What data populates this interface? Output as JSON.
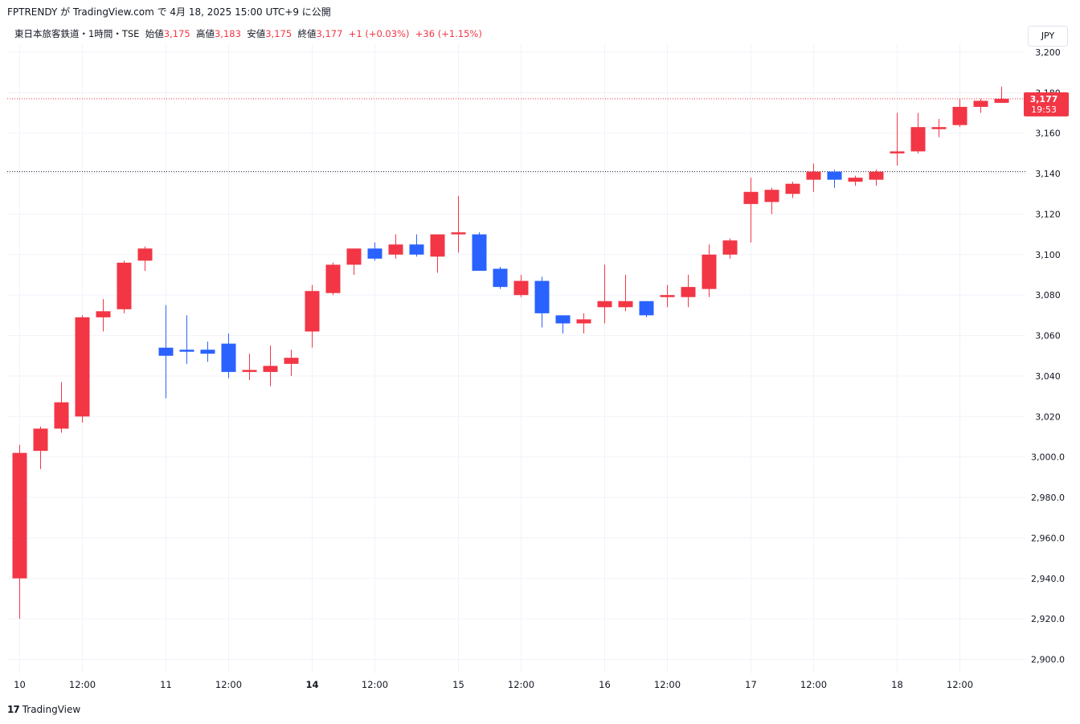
{
  "header": {
    "published_line": "FPTRENDY が TradingView.com で 4月 18, 2025 15:00 UTC+9 に公開"
  },
  "legend": {
    "symbol": "東日本旅客鉄道・1時間・TSE",
    "open_label": "始値",
    "open_value": "3,175",
    "high_label": "高値",
    "high_value": "3,183",
    "low_label": "安値",
    "low_value": "3,175",
    "close_label": "終値",
    "close_value": "3,177",
    "change": "+1 (+0.03%)",
    "change_session": "+36 (+1.15%)"
  },
  "currency_button": "JPY",
  "price_tag": {
    "price": "3,177",
    "countdown": "19:53"
  },
  "footer": {
    "brand": "TradingView",
    "logo_glyph": "17"
  },
  "colors": {
    "up": "#f23645",
    "down": "#2962ff",
    "grid": "#f0f3fa",
    "axis_text": "#131722"
  },
  "chart_data": {
    "type": "candlestick",
    "y_ticks": [
      "3,200",
      "3,180",
      "3,160",
      "3,140",
      "3,120",
      "3,100",
      "3,080",
      "3,060",
      "3,040",
      "3,020",
      "3,000.0",
      "2,980.0",
      "2,960.0",
      "2,940.0",
      "2,920.0",
      "2,900.0"
    ],
    "y_tick_values": [
      3200,
      3180,
      3160,
      3140,
      3120,
      3100,
      3080,
      3060,
      3040,
      3020,
      3000,
      2980,
      2960,
      2940,
      2920,
      2900
    ],
    "ylim": [
      2896,
      3204
    ],
    "x_labels": [
      {
        "label": "10",
        "index": 0,
        "bold": false
      },
      {
        "label": "12:00",
        "index": 3,
        "bold": false
      },
      {
        "label": "11",
        "index": 7,
        "bold": false
      },
      {
        "label": "12:00",
        "index": 10,
        "bold": false
      },
      {
        "label": "14",
        "index": 14,
        "bold": true
      },
      {
        "label": "12:00",
        "index": 17,
        "bold": false
      },
      {
        "label": "15",
        "index": 21,
        "bold": false
      },
      {
        "label": "12:00",
        "index": 24,
        "bold": false
      },
      {
        "label": "16",
        "index": 28,
        "bold": false
      },
      {
        "label": "12:00",
        "index": 31,
        "bold": false
      },
      {
        "label": "17",
        "index": 35,
        "bold": false
      },
      {
        "label": "12:00",
        "index": 38,
        "bold": false
      },
      {
        "label": "18",
        "index": 42,
        "bold": false
      },
      {
        "label": "12:00",
        "index": 45,
        "bold": false
      }
    ],
    "last_price": 3177,
    "previous_close_line": 3141,
    "candles": [
      {
        "o": 2940,
        "h": 3006,
        "l": 2920,
        "c": 3002
      },
      {
        "o": 3003,
        "h": 3015,
        "l": 2994,
        "c": 3014
      },
      {
        "o": 3014,
        "h": 3037,
        "l": 3012,
        "c": 3027
      },
      {
        "o": 3020,
        "h": 3070,
        "l": 3017,
        "c": 3069
      },
      {
        "o": 3069,
        "h": 3078,
        "l": 3062,
        "c": 3072
      },
      {
        "o": 3073,
        "h": 3097,
        "l": 3071,
        "c": 3096
      },
      {
        "o": 3097,
        "h": 3104,
        "l": 3092,
        "c": 3103
      },
      {
        "o": 3054,
        "h": 3075,
        "l": 3029,
        "c": 3050
      },
      {
        "o": 3053,
        "h": 3070,
        "l": 3046,
        "c": 3052
      },
      {
        "o": 3053,
        "h": 3057,
        "l": 3047,
        "c": 3051
      },
      {
        "o": 3056,
        "h": 3061,
        "l": 3039,
        "c": 3042
      },
      {
        "o": 3042,
        "h": 3051,
        "l": 3038,
        "c": 3043
      },
      {
        "o": 3042,
        "h": 3055,
        "l": 3035,
        "c": 3045
      },
      {
        "o": 3046,
        "h": 3053,
        "l": 3040,
        "c": 3049
      },
      {
        "o": 3062,
        "h": 3085,
        "l": 3054,
        "c": 3082
      },
      {
        "o": 3081,
        "h": 3096,
        "l": 3080,
        "c": 3095
      },
      {
        "o": 3095,
        "h": 3103,
        "l": 3090,
        "c": 3103
      },
      {
        "o": 3103,
        "h": 3106,
        "l": 3097,
        "c": 3098
      },
      {
        "o": 3100,
        "h": 3110,
        "l": 3098,
        "c": 3105
      },
      {
        "o": 3105,
        "h": 3110,
        "l": 3099,
        "c": 3100
      },
      {
        "o": 3099,
        "h": 3110,
        "l": 3091,
        "c": 3110
      },
      {
        "o": 3110,
        "h": 3129,
        "l": 3101,
        "c": 3111
      },
      {
        "o": 3110,
        "h": 3111,
        "l": 3092,
        "c": 3092
      },
      {
        "o": 3093,
        "h": 3094,
        "l": 3083,
        "c": 3084
      },
      {
        "o": 3080,
        "h": 3090,
        "l": 3079,
        "c": 3087
      },
      {
        "o": 3087,
        "h": 3089,
        "l": 3064,
        "c": 3071
      },
      {
        "o": 3070,
        "h": 3070,
        "l": 3061,
        "c": 3066
      },
      {
        "o": 3066,
        "h": 3071,
        "l": 3061,
        "c": 3068
      },
      {
        "o": 3074,
        "h": 3095,
        "l": 3066,
        "c": 3077
      },
      {
        "o": 3074,
        "h": 3090,
        "l": 3072,
        "c": 3077
      },
      {
        "o": 3077,
        "h": 3077,
        "l": 3069,
        "c": 3070
      },
      {
        "o": 3079,
        "h": 3085,
        "l": 3074,
        "c": 3080
      },
      {
        "o": 3079,
        "h": 3090,
        "l": 3074,
        "c": 3084
      },
      {
        "o": 3083,
        "h": 3105,
        "l": 3079,
        "c": 3100
      },
      {
        "o": 3100,
        "h": 3108,
        "l": 3098,
        "c": 3107
      },
      {
        "o": 3125,
        "h": 3138,
        "l": 3106,
        "c": 3131
      },
      {
        "o": 3126,
        "h": 3133,
        "l": 3120,
        "c": 3132
      },
      {
        "o": 3130,
        "h": 3136,
        "l": 3128,
        "c": 3135
      },
      {
        "o": 3137,
        "h": 3145,
        "l": 3131,
        "c": 3141
      },
      {
        "o": 3141,
        "h": 3142,
        "l": 3133,
        "c": 3137
      },
      {
        "o": 3136,
        "h": 3139,
        "l": 3134,
        "c": 3138
      },
      {
        "o": 3137,
        "h": 3142,
        "l": 3134,
        "c": 3141
      },
      {
        "o": 3150,
        "h": 3170,
        "l": 3144,
        "c": 3151
      },
      {
        "o": 3151,
        "h": 3170,
        "l": 3150,
        "c": 3163
      },
      {
        "o": 3162,
        "h": 3167,
        "l": 3158,
        "c": 3163
      },
      {
        "o": 3164,
        "h": 3177,
        "l": 3163,
        "c": 3173
      },
      {
        "o": 3173,
        "h": 3177,
        "l": 3170,
        "c": 3176
      },
      {
        "o": 3175,
        "h": 3183,
        "l": 3175,
        "c": 3177
      }
    ]
  }
}
